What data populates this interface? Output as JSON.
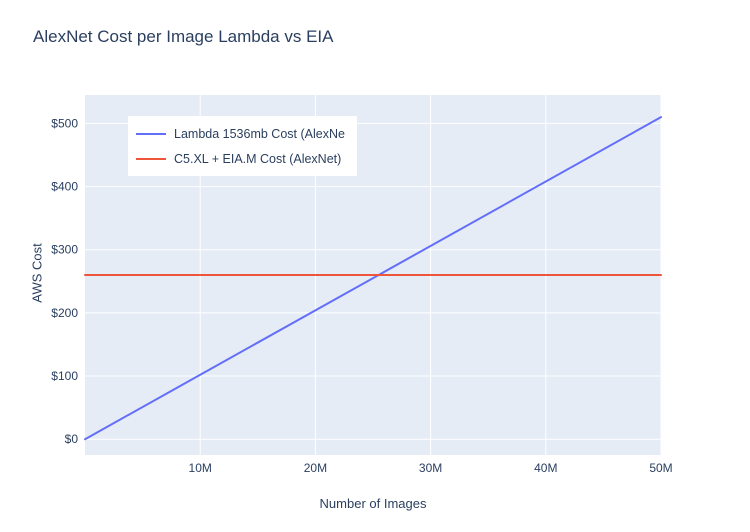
{
  "page": {
    "background": "#ffffff"
  },
  "chart_data": {
    "type": "line",
    "title": "AlexNet Cost per Image Lambda vs EIA",
    "xlabel": "Number of Images",
    "ylabel": "AWS Cost",
    "x_unit": "millions of images",
    "xlim": [
      0,
      50
    ],
    "ylim": [
      -25,
      545
    ],
    "grid": true,
    "legend_position": "top-left inside plot",
    "plot_bg": "#e5ecf6",
    "grid_color": "#ffffff",
    "text_color": "#2a3f5f",
    "x_ticks": [
      {
        "value": 10,
        "label": "10M"
      },
      {
        "value": 20,
        "label": "20M"
      },
      {
        "value": 30,
        "label": "30M"
      },
      {
        "value": 40,
        "label": "40M"
      },
      {
        "value": 50,
        "label": "50M"
      }
    ],
    "y_ticks": [
      {
        "value": 0,
        "label": "$0"
      },
      {
        "value": 100,
        "label": "$100"
      },
      {
        "value": 200,
        "label": "$200"
      },
      {
        "value": 300,
        "label": "$300"
      },
      {
        "value": 400,
        "label": "$400"
      },
      {
        "value": 500,
        "label": "$500"
      }
    ],
    "series": [
      {
        "name": "Lambda 1536mb Cost (AlexNe",
        "color": "#636efa",
        "x": [
          0,
          50
        ],
        "y": [
          0,
          510
        ]
      },
      {
        "name": "C5.XL + EIA.M Cost (AlexNet)",
        "color": "#EF553B",
        "x": [
          0,
          50
        ],
        "y": [
          260,
          260
        ]
      }
    ]
  }
}
